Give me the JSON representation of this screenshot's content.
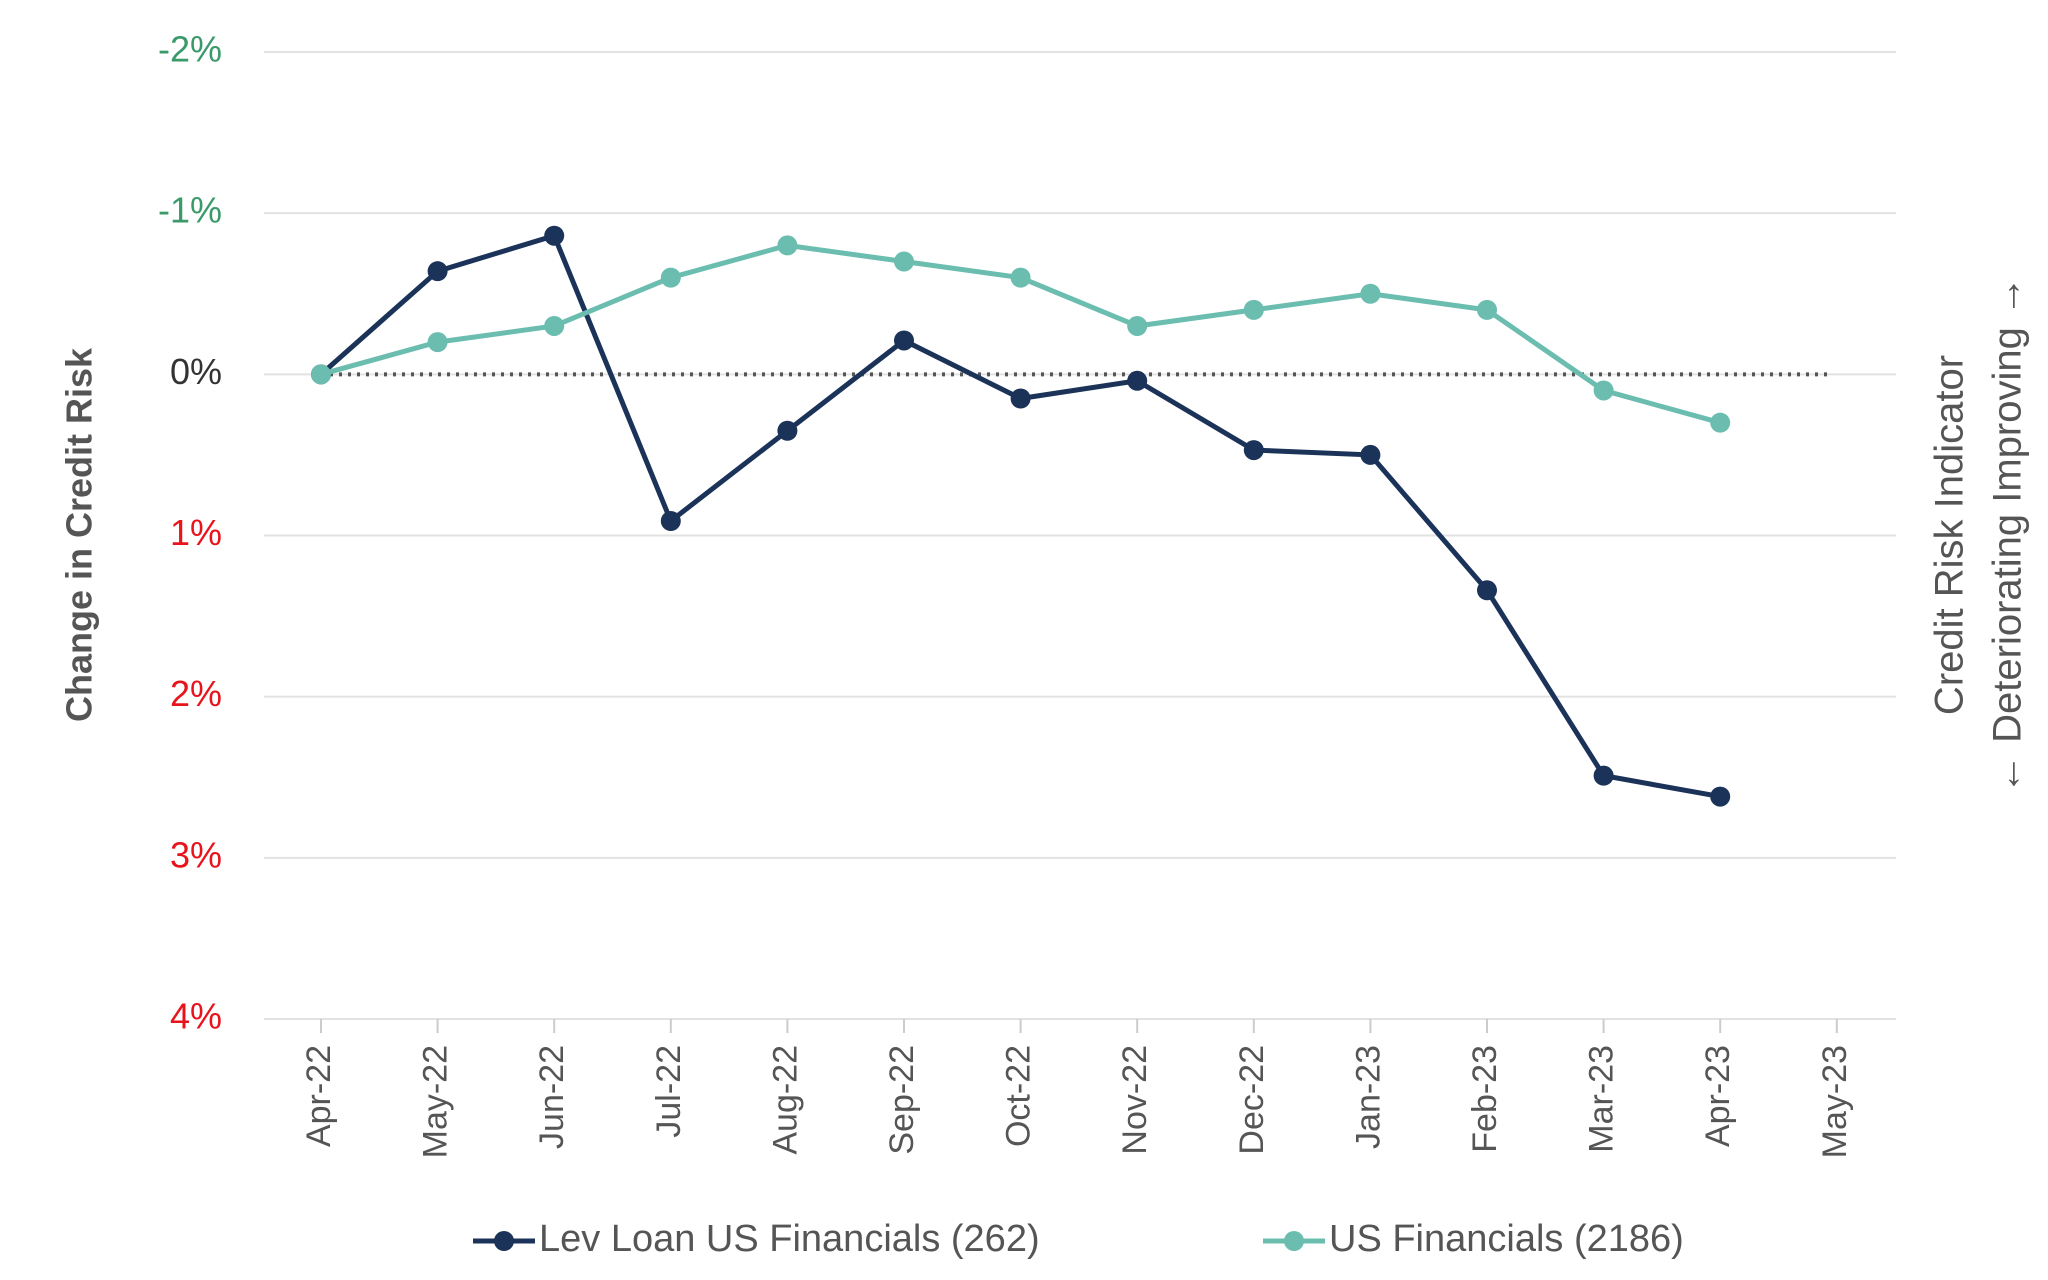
{
  "chart_data": {
    "type": "line",
    "ylabel": "Change in Credit Risk",
    "y2label": "Credit Risk Indicator",
    "y2sublabel": "← Deteriorating Improving →",
    "categories": [
      "Apr-22",
      "May-22",
      "Jun-22",
      "Jul-22",
      "Aug-22",
      "Sep-22",
      "Oct-22",
      "Nov-22",
      "Dec-22",
      "Jan-23",
      "Feb-23",
      "Mar-23",
      "Apr-23",
      "May-23"
    ],
    "series": [
      {
        "name": "Lev Loan US Financials (262)",
        "color": "#1b3358",
        "values": [
          0,
          -0.64,
          -0.86,
          0.91,
          0.35,
          -0.21,
          0.15,
          0.04,
          0.47,
          0.5,
          1.34,
          2.49,
          2.62,
          null
        ]
      },
      {
        "name": "US Financials (2186)",
        "color": "#6bbdaf",
        "values": [
          0,
          -0.2,
          -0.3,
          -0.6,
          -0.8,
          -0.7,
          -0.6,
          -0.3,
          -0.4,
          -0.5,
          -0.4,
          0.1,
          0.3,
          null
        ]
      }
    ],
    "ylim": [
      -2,
      4
    ],
    "y_inverted": true,
    "yticks": [
      {
        "value": -2,
        "label": "-2%",
        "color": "#3a9a6a"
      },
      {
        "value": -1,
        "label": "-1%",
        "color": "#3a9a6a"
      },
      {
        "value": 0,
        "label": "0%",
        "color": "#333333"
      },
      {
        "value": 1,
        "label": "1%",
        "color": "#e8141c"
      },
      {
        "value": 2,
        "label": "2%",
        "color": "#e8141c"
      },
      {
        "value": 3,
        "label": "3%",
        "color": "#e8141c"
      },
      {
        "value": 4,
        "label": "4%",
        "color": "#e8141c"
      }
    ],
    "grid": true,
    "zero_line": true,
    "legend": "bottom"
  }
}
